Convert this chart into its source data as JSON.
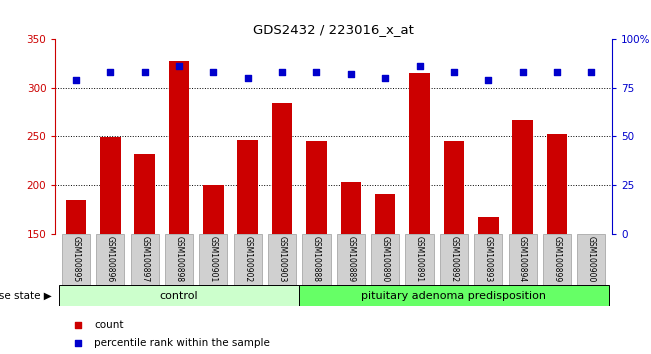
{
  "title": "GDS2432 / 223016_x_at",
  "samples": [
    "GSM100895",
    "GSM100896",
    "GSM100897",
    "GSM100898",
    "GSM100901",
    "GSM100902",
    "GSM100903",
    "GSM100888",
    "GSM100889",
    "GSM100890",
    "GSM100891",
    "GSM100892",
    "GSM100893",
    "GSM100894",
    "GSM100899",
    "GSM100900"
  ],
  "bar_values": [
    185,
    249,
    232,
    327,
    200,
    246,
    284,
    245,
    203,
    191,
    315,
    245,
    167,
    267,
    252,
    150
  ],
  "percentile_values": [
    79,
    83,
    83,
    86,
    83,
    80,
    83,
    83,
    82,
    80,
    86,
    83,
    79,
    83,
    83,
    83
  ],
  "control_count": 7,
  "disease_count": 9,
  "control_label": "control",
  "disease_label": "pituitary adenoma predisposition",
  "ylim_left": [
    150,
    350
  ],
  "ylim_right": [
    0,
    100
  ],
  "yticks_left": [
    150,
    200,
    250,
    300,
    350
  ],
  "yticks_right": [
    0,
    25,
    50,
    75,
    100
  ],
  "bar_color": "#cc0000",
  "dot_color": "#0000cc",
  "control_bg": "#ccffcc",
  "disease_bg": "#66ff66",
  "xlabel_bg": "#d0d0d0",
  "legend_count_label": "count",
  "legend_pct_label": "percentile rank within the sample",
  "disease_state_label": "disease state"
}
